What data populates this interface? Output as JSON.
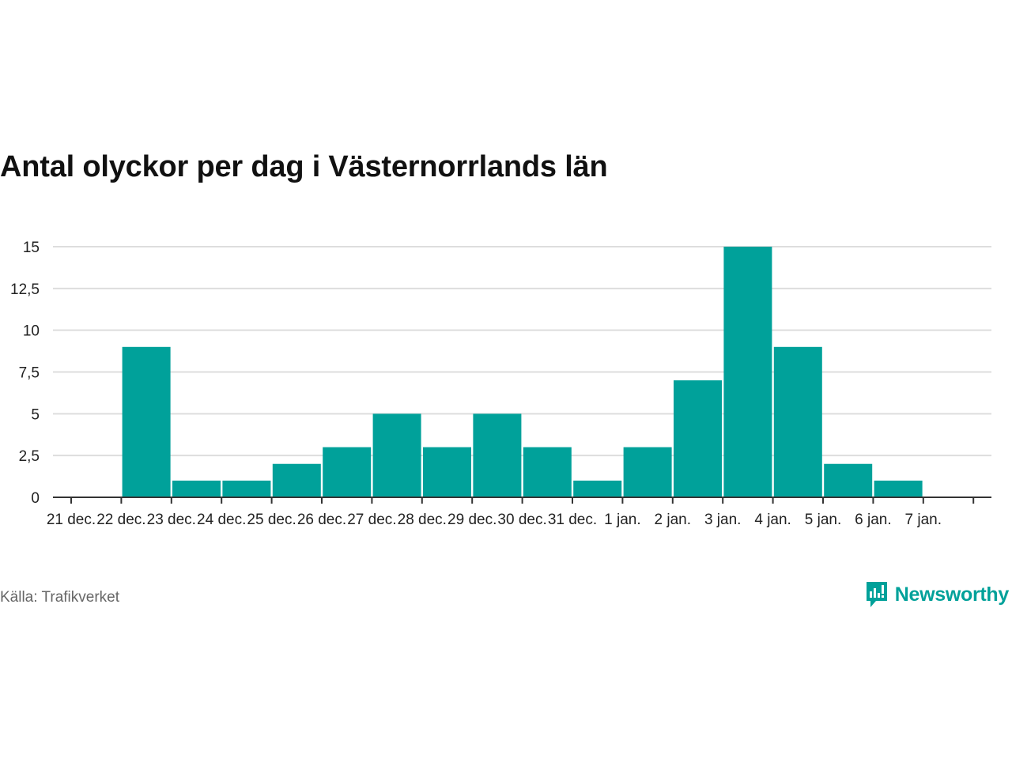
{
  "title": "Antal olyckor per dag i Västernorrlands län",
  "source": "Källa: Trafikverket",
  "brand": {
    "name": "Newsworthy",
    "icon": "newsworthy-logo-icon",
    "color": "#00a19a"
  },
  "chart_data": {
    "type": "bar",
    "title": "Antal olyckor per dag i Västernorrlands län",
    "xlabel": "",
    "ylabel": "",
    "x_tick_labels": [
      "21 dec.",
      "22 dec.",
      "23 dec.",
      "24 dec.",
      "25 dec.",
      "26 dec.",
      "27 dec.",
      "28 dec.",
      "29 dec.",
      "30 dec.",
      "31 dec.",
      "1 jan.",
      "2 jan.",
      "3 jan.",
      "4 jan.",
      "5 jan.",
      "6 jan.",
      "7 jan."
    ],
    "bar_categories": [
      "22 dec.",
      "23 dec.",
      "24 dec.",
      "25 dec.",
      "26 dec.",
      "27 dec.",
      "28 dec.",
      "29 dec.",
      "30 dec.",
      "31 dec.",
      "1 jan.",
      "2 jan.",
      "3 jan.",
      "4 jan.",
      "5 jan.",
      "6 jan."
    ],
    "values": [
      9,
      1,
      1,
      2,
      3,
      5,
      3,
      5,
      3,
      1,
      3,
      7,
      15,
      9,
      2,
      1
    ],
    "y_ticks": [
      0,
      2.5,
      5,
      7.5,
      10,
      12.5,
      15
    ],
    "y_tick_labels": [
      "0",
      "2,5",
      "5",
      "7,5",
      "10",
      "12,5",
      "15"
    ],
    "ylim": [
      0,
      15
    ],
    "grid": true,
    "bar_color": "#00a19a"
  }
}
